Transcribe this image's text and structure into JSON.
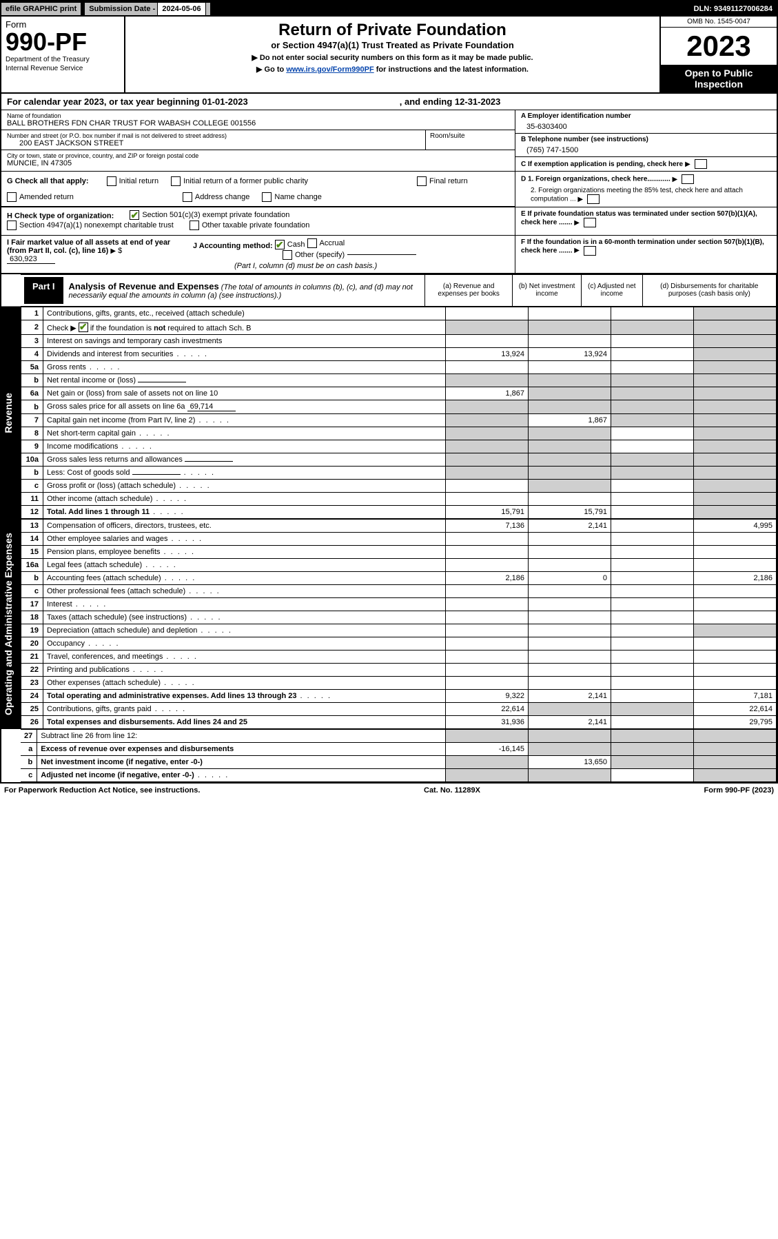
{
  "top": {
    "efile": "efile GRAPHIC print",
    "sub_date_lbl": "Submission Date - ",
    "sub_date": "2024-05-06",
    "dln_lbl": "DLN: ",
    "dln": "93491127006284"
  },
  "header": {
    "form_word": "Form",
    "form_no": "990-PF",
    "dept": "Department of the Treasury",
    "irs": "Internal Revenue Service",
    "title": "Return of Private Foundation",
    "subtitle": "or Section 4947(a)(1) Trust Treated as Private Foundation",
    "note1": "▶ Do not enter social security numbers on this form as it may be made public.",
    "note2_pre": "▶ Go to ",
    "note2_link": "www.irs.gov/Form990PF",
    "note2_post": " for instructions and the latest information.",
    "omb": "OMB No. 1545-0047",
    "year": "2023",
    "open1": "Open to Public",
    "open2": "Inspection"
  },
  "cal": {
    "text": "For calendar year 2023, or tax year beginning 01-01-2023",
    "ending": ", and ending 12-31-2023"
  },
  "id": {
    "name_lbl": "Name of foundation",
    "name": "BALL BROTHERS FDN CHAR TRUST FOR WABASH COLLEGE 001556",
    "addr_lbl": "Number and street (or P.O. box number if mail is not delivered to street address)",
    "addr": "200 EAST JACKSON STREET",
    "room_lbl": "Room/suite",
    "city_lbl": "City or town, state or province, country, and ZIP or foreign postal code",
    "city": "MUNCIE, IN  47305",
    "a_lbl": "A Employer identification number",
    "a_val": "35-6303400",
    "b_lbl": "B Telephone number (see instructions)",
    "b_val": "(765) 747-1500",
    "c_lbl": "C If exemption application is pending, check here",
    "d1": "D 1. Foreign organizations, check here............",
    "d2": "2. Foreign organizations meeting the 85% test, check here and attach computation ...",
    "e": "E  If private foundation status was terminated under section 507(b)(1)(A), check here .......",
    "f": "F  If the foundation is in a 60-month termination under section 507(b)(1)(B), check here .......",
    "g_lbl": "G Check all that apply:",
    "g_opts": [
      "Initial return",
      "Initial return of a former public charity",
      "Final return",
      "Amended return",
      "Address change",
      "Name change"
    ],
    "h_lbl": "H Check type of organization:",
    "h1": "Section 501(c)(3) exempt private foundation",
    "h2": "Section 4947(a)(1) nonexempt charitable trust",
    "h3": "Other taxable private foundation",
    "i_lbl": "I Fair market value of all assets at end of year (from Part II, col. (c), line 16)",
    "i_val": "630,923",
    "j_lbl": "J Accounting method:",
    "j1": "Cash",
    "j2": "Accrual",
    "j3": "Other (specify)",
    "j_note": "(Part I, column (d) must be on cash basis.)"
  },
  "part1": {
    "tab": "Part I",
    "title": "Analysis of Revenue and Expenses",
    "title_note": " (The total of amounts in columns (b), (c), and (d) may not necessarily equal the amounts in column (a) (see instructions).)",
    "cols": {
      "a": "(a)   Revenue and expenses per books",
      "b": "(b)   Net investment income",
      "c": "(c)   Adjusted net income",
      "d": "(d)   Disbursements for charitable purposes (cash basis only)"
    }
  },
  "sides": {
    "rev": "Revenue",
    "exp": "Operating and Administrative Expenses"
  },
  "rows": [
    {
      "n": "1",
      "d": "Contributions, gifts, grants, etc., received (attach schedule)",
      "a": "",
      "b": "",
      "shade_d": true
    },
    {
      "n": "2",
      "d_html": "Check ▶ <span class='ckbox checked'></span> if the foundation is <b>not</b> required to attach Sch. B",
      "dots": true,
      "shade_all": true
    },
    {
      "n": "3",
      "d": "Interest on savings and temporary cash investments",
      "a": "",
      "b": "",
      "c": "",
      "shade_d": true
    },
    {
      "n": "4",
      "d": "Dividends and interest from securities",
      "dots": true,
      "a": "13,924",
      "b": "13,924",
      "c": "",
      "shade_d": true
    },
    {
      "n": "5a",
      "d": "Gross rents",
      "dots": true,
      "a": "",
      "b": "",
      "c": "",
      "shade_d": true
    },
    {
      "n": "b",
      "d": "Net rental income or (loss)",
      "inline": "",
      "shade_all": true
    },
    {
      "n": "6a",
      "d": "Net gain or (loss) from sale of assets not on line 10",
      "a": "1,867",
      "shade_bcd": true
    },
    {
      "n": "b",
      "d": "Gross sales price for all assets on line 6a",
      "inline": "69,714",
      "shade_all": true
    },
    {
      "n": "7",
      "d": "Capital gain net income (from Part IV, line 2)",
      "dots": true,
      "b": "1,867",
      "shade_a": true,
      "shade_cd": true
    },
    {
      "n": "8",
      "d": "Net short-term capital gain",
      "dots": true,
      "shade_ab": true,
      "c": "",
      "shade_d": true
    },
    {
      "n": "9",
      "d": "Income modifications",
      "dots": true,
      "shade_ab": true,
      "c": "",
      "shade_d": true
    },
    {
      "n": "10a",
      "d": "Gross sales less returns and allowances",
      "inline": "",
      "shade_all": true
    },
    {
      "n": "b",
      "d": "Less: Cost of goods sold",
      "dots": true,
      "inline": "",
      "shade_all": true
    },
    {
      "n": "c",
      "d": "Gross profit or (loss) (attach schedule)",
      "dots": true,
      "a": "",
      "c": "",
      "shade_b": true,
      "shade_d": true
    },
    {
      "n": "11",
      "d": "Other income (attach schedule)",
      "dots": true,
      "a": "",
      "b": "",
      "c": "",
      "shade_d": true
    },
    {
      "n": "12",
      "d": "Total. Add lines 1 through 11",
      "dots": true,
      "bold": true,
      "a": "15,791",
      "b": "15,791",
      "c": "",
      "shade_d": true
    }
  ],
  "exp_rows": [
    {
      "n": "13",
      "d": "Compensation of officers, directors, trustees, etc.",
      "a": "7,136",
      "b": "2,141",
      "c": "",
      "dd": "4,995"
    },
    {
      "n": "14",
      "d": "Other employee salaries and wages",
      "dots": true,
      "a": "",
      "b": "",
      "c": "",
      "dd": ""
    },
    {
      "n": "15",
      "d": "Pension plans, employee benefits",
      "dots": true,
      "a": "",
      "b": "",
      "c": "",
      "dd": ""
    },
    {
      "n": "16a",
      "d": "Legal fees (attach schedule)",
      "dots": true,
      "a": "",
      "b": "",
      "c": "",
      "dd": ""
    },
    {
      "n": "b",
      "d": "Accounting fees (attach schedule)",
      "dots": true,
      "a": "2,186",
      "b": "0",
      "c": "",
      "dd": "2,186"
    },
    {
      "n": "c",
      "d": "Other professional fees (attach schedule)",
      "dots": true,
      "a": "",
      "b": "",
      "c": "",
      "dd": ""
    },
    {
      "n": "17",
      "d": "Interest",
      "dots": true,
      "a": "",
      "b": "",
      "c": "",
      "dd": ""
    },
    {
      "n": "18",
      "d": "Taxes (attach schedule) (see instructions)",
      "dots": true,
      "a": "",
      "b": "",
      "c": "",
      "dd": ""
    },
    {
      "n": "19",
      "d": "Depreciation (attach schedule) and depletion",
      "dots": true,
      "a": "",
      "b": "",
      "c": "",
      "shade_d": true
    },
    {
      "n": "20",
      "d": "Occupancy",
      "dots": true,
      "a": "",
      "b": "",
      "c": "",
      "dd": ""
    },
    {
      "n": "21",
      "d": "Travel, conferences, and meetings",
      "dots": true,
      "a": "",
      "b": "",
      "c": "",
      "dd": ""
    },
    {
      "n": "22",
      "d": "Printing and publications",
      "dots": true,
      "a": "",
      "b": "",
      "c": "",
      "dd": ""
    },
    {
      "n": "23",
      "d": "Other expenses (attach schedule)",
      "dots": true,
      "a": "",
      "b": "",
      "c": "",
      "dd": ""
    },
    {
      "n": "24",
      "d": "Total operating and administrative expenses. Add lines 13 through 23",
      "dots": true,
      "bold": true,
      "a": "9,322",
      "b": "2,141",
      "c": "",
      "dd": "7,181"
    },
    {
      "n": "25",
      "d": "Contributions, gifts, grants paid",
      "dots": true,
      "a": "22,614",
      "shade_bc": true,
      "dd": "22,614"
    },
    {
      "n": "26",
      "d": "Total expenses and disbursements. Add lines 24 and 25",
      "bold": true,
      "a": "31,936",
      "b": "2,141",
      "c": "",
      "dd": "29,795"
    }
  ],
  "net_rows": [
    {
      "n": "27",
      "d": "Subtract line 26 from line 12:",
      "shade_all": true
    },
    {
      "n": "a",
      "d": "Excess of revenue over expenses and disbursements",
      "bold": true,
      "a": "-16,145",
      "shade_bcd": true
    },
    {
      "n": "b",
      "d": "Net investment income (if negative, enter -0-)",
      "bold": true,
      "shade_a": true,
      "b": "13,650",
      "shade_cd": true
    },
    {
      "n": "c",
      "d": "Adjusted net income (if negative, enter -0-)",
      "bold": true,
      "dots": true,
      "shade_ab": true,
      "c": "",
      "shade_d": true
    }
  ],
  "footer": {
    "left": "For Paperwork Reduction Act Notice, see instructions.",
    "mid": "Cat. No. 11289X",
    "right": "Form 990-PF (2023)"
  }
}
